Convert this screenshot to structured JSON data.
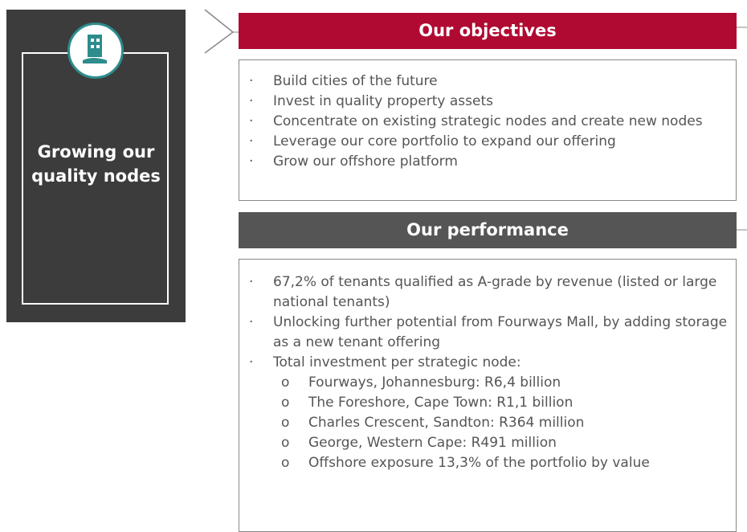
{
  "sidebar": {
    "title": "Growing our quality nodes"
  },
  "objectives": {
    "heading": "Our objectives",
    "items": [
      "Build cities of the future",
      "Invest in quality property assets",
      "Concentrate on existing strategic nodes and create new nodes",
      "Leverage our core portfolio to expand our offering",
      "Grow our offshore platform"
    ]
  },
  "performance": {
    "heading": "Our performance",
    "items": [
      "67,2% of tenants qualified as A-grade by revenue (listed or large national tenants)",
      "Unlocking further potential from Fourways Mall, by adding storage as a new tenant offering",
      "Total investment per strategic node:"
    ],
    "subitems": [
      "Fourways, Johannesburg: R6,4 billion",
      "The Foreshore, Cape Town: R1,1 billion",
      "Charles Crescent, Sandton: R364 million",
      "George, Western Cape: R491 million",
      "Offshore exposure 13,3% of the portfolio by value"
    ]
  }
}
